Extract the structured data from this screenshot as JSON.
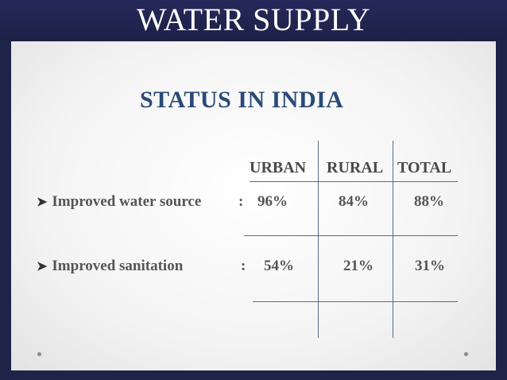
{
  "slide": {
    "title": "WATER  SUPPLY"
  },
  "content": {
    "heading": "STATUS IN INDIA",
    "columns": [
      "URBAN",
      "RURAL",
      "TOTAL"
    ],
    "rows": [
      {
        "label": "Improved water source",
        "colon": ":",
        "values": [
          "96%",
          "84%",
          "88%"
        ]
      },
      {
        "label": "Improved sanitation",
        "colon": ":",
        "values": [
          "54%",
          "21%",
          "31%"
        ]
      }
    ]
  }
}
